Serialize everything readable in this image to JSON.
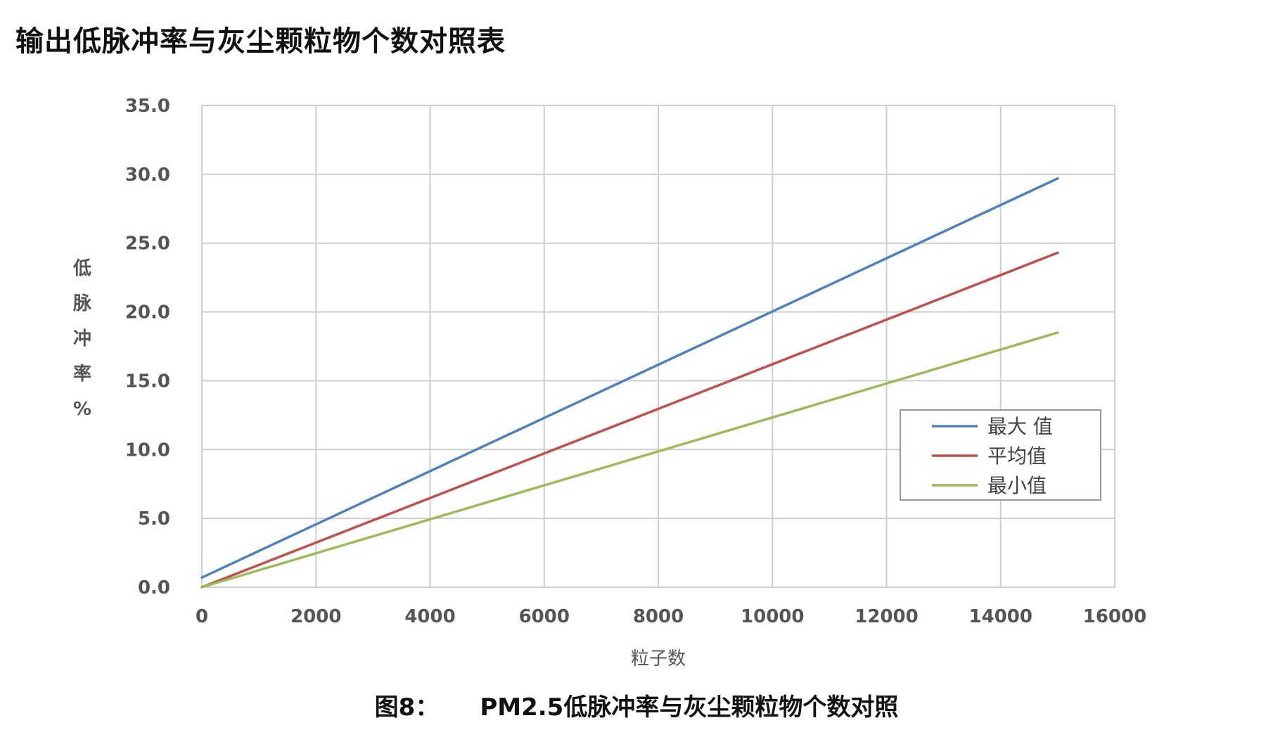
{
  "page": {
    "title": "输出低脉冲率与灰尘颗粒物个数对照表",
    "caption_label": "图8：",
    "caption_text": "PM2.5低脉冲率与灰尘颗粒物个数对照"
  },
  "chart_data": {
    "type": "line",
    "xlabel": "粒子数",
    "ylabel": "低脉冲率%",
    "ylabel_chars": [
      "低",
      "脉",
      "冲",
      "率",
      "%"
    ],
    "xlim": [
      0,
      16000
    ],
    "ylim": [
      0,
      35
    ],
    "x_ticks": [
      "0",
      "2000",
      "4000",
      "6000",
      "8000",
      "10000",
      "12000",
      "14000",
      "16000"
    ],
    "y_ticks": [
      "0.0",
      "5.0",
      "10.0",
      "15.0",
      "20.0",
      "25.0",
      "30.0",
      "35.0"
    ],
    "grid": true,
    "legend_position": "right",
    "x": [
      0,
      15000
    ],
    "series": [
      {
        "name": "最大 值",
        "color": "#4f81bd",
        "values": [
          0.7,
          29.7
        ]
      },
      {
        "name": "平均值",
        "color": "#c0504d",
        "values": [
          0.0,
          24.3
        ]
      },
      {
        "name": "最小值",
        "color": "#9bbb59",
        "values": [
          0.0,
          18.5
        ]
      }
    ]
  }
}
